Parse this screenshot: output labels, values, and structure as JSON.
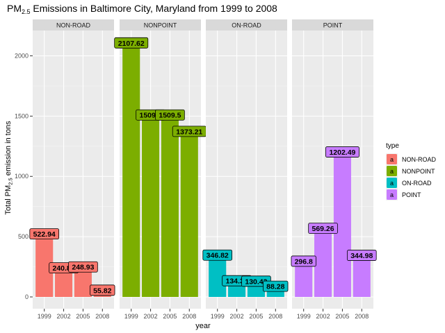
{
  "chart_data": {
    "type": "bar",
    "title": {
      "prefix": "PM",
      "subscript": "2.5",
      "rest": " Emissions in Baltimore City, Maryland from 1999 to 2008"
    },
    "xlabel": "year",
    "ylabel": {
      "prefix": "Total PM",
      "subscript": "2.5",
      "rest": " emission in tons"
    },
    "categories": [
      "1999",
      "2002",
      "2005",
      "2008"
    ],
    "ylim": [
      0,
      2210
    ],
    "yticks": [
      0,
      500,
      1000,
      1500,
      2000
    ],
    "grid": true,
    "legend": {
      "title": "type",
      "position": "right",
      "key_glyph": "a"
    },
    "facets": [
      {
        "name": "NON-ROAD",
        "color": "#F8766D",
        "values": [
          522.94,
          240.85,
          248.93,
          55.82
        ],
        "labels": [
          "522.94",
          "240.85",
          "248.93",
          "55.82"
        ]
      },
      {
        "name": "NONPOINT",
        "color": "#7CAE00",
        "values": [
          2107.62,
          1509.5,
          1509.5,
          1373.21
        ],
        "labels": [
          "2107.62",
          "1509.5",
          "1509.5",
          "1373.21"
        ]
      },
      {
        "name": "ON-ROAD",
        "color": "#00BFC4",
        "values": [
          346.82,
          134.31,
          130.43,
          88.28
        ],
        "labels": [
          "346.82",
          "134.31",
          "130.43",
          "88.28"
        ]
      },
      {
        "name": "POINT",
        "color": "#C77CFF",
        "values": [
          296.8,
          569.26,
          1202.49,
          344.98
        ],
        "labels": [
          "296.8",
          "569.26",
          "1202.49",
          "344.98"
        ]
      }
    ]
  }
}
